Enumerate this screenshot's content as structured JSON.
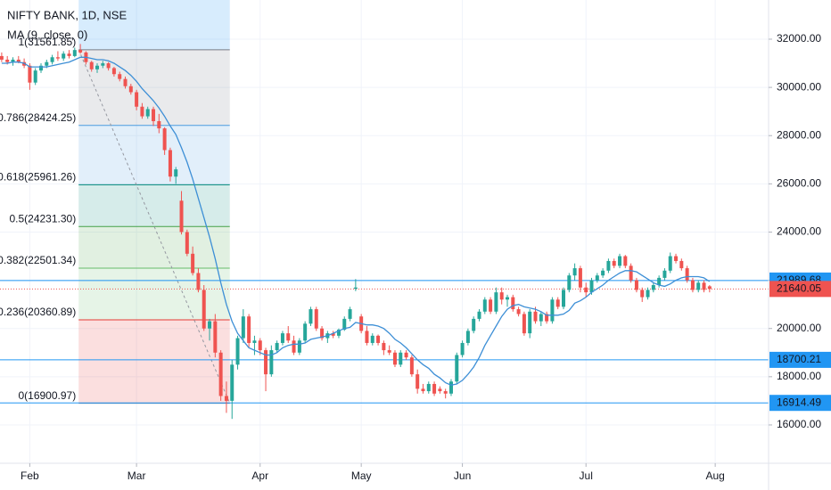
{
  "chart_data": {
    "type": "candlestick",
    "title": "NIFTY BANK, 1D, NSE",
    "up_color": "#26a69a",
    "down_color": "#ef5350",
    "xlim": [
      -0.3,
      136.5
    ],
    "ylim": [
      14410,
      33625
    ],
    "xticks": [
      {
        "value": 5,
        "label": "Feb"
      },
      {
        "value": 24,
        "label": "Mar"
      },
      {
        "value": 46,
        "label": "Apr"
      },
      {
        "value": 64,
        "label": "May"
      },
      {
        "value": 82,
        "label": "Jun"
      },
      {
        "value": 104,
        "label": "Jul"
      },
      {
        "value": 127,
        "label": "Aug"
      }
    ],
    "yticks": [
      {
        "value": 16000,
        "label": "16000.00"
      },
      {
        "value": 18000,
        "label": "18000.00"
      },
      {
        "value": 20000,
        "label": "20000.00"
      },
      {
        "value": 22000,
        "label": "22000.00"
      },
      {
        "value": 24000,
        "label": "24000.00"
      },
      {
        "value": 26000,
        "label": "26000.00"
      },
      {
        "value": 28000,
        "label": "28000.00"
      },
      {
        "value": 30000,
        "label": "30000.00"
      },
      {
        "value": 32000,
        "label": "32000.00"
      }
    ],
    "grid": true,
    "open": [
      31300,
      31150,
      31050,
      31150,
      31050,
      30900,
      30200,
      30700,
      30900,
      31050,
      31250,
      31200,
      31400,
      31300,
      31550,
      31450,
      31050,
      30750,
      30900,
      31000,
      30800,
      30550,
      30350,
      30050,
      29800,
      29200,
      28800,
      29100,
      28600,
      28300,
      27400,
      26300,
      25300,
      24000,
      23100,
      22300,
      21600,
      20000,
      20300,
      19000,
      17200,
      17000,
      18500,
      19600,
      20500,
      19400,
      19500,
      19100,
      18100,
      19100,
      19400,
      19800,
      19500,
      19000,
      19500,
      20200,
      20800,
      20000,
      19600,
      19800,
      19700,
      19950,
      20400,
      21650,
      20500,
      19900,
      19400,
      19700,
      19400,
      19100,
      19000,
      18500,
      19000,
      18800,
      18100,
      17500,
      17400,
      17700,
      17500,
      17400,
      17300,
      17800,
      18900,
      19400,
      19900,
      20400,
      20700,
      21200,
      20700,
      21500,
      21200,
      21300,
      20800,
      20600,
      19800,
      20700,
      20300,
      20600,
      20300,
      21200,
      20900,
      21600,
      22200,
      22500,
      21700,
      21500,
      22000,
      22200,
      22400,
      22800,
      22600,
      23000,
      22600,
      22000,
      21600,
      21300,
      21600,
      21800,
      22100,
      22400,
      23000,
      22800,
      22500,
      22000,
      21600,
      21900,
      21750
    ],
    "high": [
      31450,
      31300,
      31250,
      31300,
      31200,
      31000,
      30800,
      31000,
      31150,
      31350,
      31500,
      31500,
      31550,
      31650,
      31800,
      31500,
      31100,
      31000,
      31100,
      31050,
      30850,
      30650,
      30450,
      30150,
      29900,
      29350,
      29200,
      29200,
      28900,
      28350,
      27500,
      26700,
      25700,
      24100,
      23400,
      22500,
      21800,
      20400,
      20600,
      19100,
      17800,
      18700,
      19700,
      20800,
      20600,
      19700,
      19600,
      19200,
      19300,
      19500,
      19900,
      20100,
      19700,
      19600,
      20300,
      20900,
      20900,
      20100,
      19900,
      19900,
      20000,
      20500,
      20900,
      22050,
      20600,
      20100,
      19800,
      19750,
      19500,
      19300,
      19100,
      19100,
      19100,
      18900,
      18300,
      17700,
      17800,
      17800,
      17600,
      17500,
      17900,
      19000,
      19500,
      20000,
      20500,
      20800,
      21300,
      21300,
      21700,
      21700,
      21400,
      21400,
      20900,
      20700,
      20800,
      20900,
      20700,
      20700,
      21300,
      21300,
      21700,
      22300,
      22700,
      22600,
      21900,
      22100,
      22300,
      22500,
      22900,
      22900,
      23100,
      23050,
      22700,
      22100,
      21700,
      21700,
      21900,
      22200,
      22500,
      23150,
      23100,
      22900,
      22600,
      22100,
      22000,
      22000,
      21800
    ],
    "low": [
      31050,
      30950,
      30900,
      31000,
      30800,
      29900,
      30100,
      30600,
      30800,
      30950,
      31100,
      31100,
      31200,
      31250,
      31400,
      30950,
      30650,
      30600,
      30800,
      30700,
      30450,
      30250,
      29950,
      29700,
      29050,
      28700,
      28700,
      28400,
      28100,
      27200,
      26100,
      26000,
      23900,
      23000,
      22200,
      21500,
      19900,
      19500,
      18800,
      17000,
      16500,
      16250,
      18300,
      19400,
      19200,
      18900,
      18900,
      17400,
      18000,
      19000,
      19300,
      19400,
      18900,
      18900,
      19400,
      20100,
      19900,
      19500,
      19400,
      19600,
      19600,
      19900,
      20300,
      21550,
      19800,
      19300,
      19300,
      19300,
      18900,
      18900,
      18400,
      18400,
      18700,
      18000,
      17300,
      17300,
      17300,
      17200,
      17300,
      17100,
      17200,
      17700,
      18800,
      19300,
      19800,
      20300,
      20600,
      20600,
      20600,
      21000,
      20900,
      20700,
      20500,
      19700,
      19600,
      20200,
      20100,
      20200,
      20200,
      20800,
      20800,
      21500,
      22000,
      21500,
      21300,
      21400,
      21900,
      22100,
      22300,
      22500,
      22500,
      22500,
      21900,
      21500,
      21100,
      21200,
      21500,
      21700,
      22000,
      22300,
      22700,
      22400,
      21900,
      21500,
      21500,
      21500,
      21500
    ],
    "close": [
      31150,
      31050,
      31150,
      31050,
      30900,
      30200,
      30700,
      30900,
      31050,
      31250,
      31200,
      31400,
      31300,
      31550,
      31450,
      31050,
      30750,
      30900,
      31000,
      30800,
      30550,
      30350,
      30050,
      29800,
      29200,
      28800,
      29100,
      28600,
      28300,
      27400,
      26300,
      26600,
      24000,
      23100,
      22300,
      21600,
      20000,
      20300,
      19000,
      17200,
      17000,
      18500,
      19600,
      20500,
      19400,
      19500,
      19100,
      18100,
      19100,
      19400,
      19800,
      19500,
      19000,
      19500,
      20200,
      20800,
      20000,
      19600,
      19800,
      19700,
      19950,
      20400,
      20800,
      21700,
      19900,
      19400,
      19700,
      19400,
      19100,
      19000,
      18500,
      19000,
      18800,
      18100,
      17500,
      17400,
      17700,
      17300,
      17400,
      17300,
      17800,
      18900,
      19400,
      19900,
      20400,
      20700,
      21200,
      20700,
      21500,
      21200,
      21300,
      20800,
      20600,
      19800,
      20700,
      20300,
      20600,
      20300,
      21200,
      20900,
      21600,
      22200,
      22500,
      21700,
      21500,
      22000,
      22200,
      22400,
      22800,
      22600,
      23000,
      22600,
      22000,
      21600,
      21300,
      21600,
      21800,
      22100,
      22400,
      23000,
      22800,
      22500,
      22000,
      21600,
      21900,
      21600,
      21640.05
    ],
    "series": [
      {
        "name": "MA (9, close, 0)",
        "color": "#3d8fd6",
        "values": [
          31000,
          31000,
          31050,
          31050,
          31000,
          30850,
          30850,
          30850,
          30850,
          30900,
          30950,
          31000,
          31050,
          31150,
          31250,
          31250,
          31200,
          31150,
          31150,
          31100,
          31000,
          30850,
          30700,
          30500,
          30250,
          29950,
          29700,
          29450,
          29150,
          28800,
          28400,
          28050,
          27500,
          26900,
          26200,
          25400,
          24600,
          23800,
          22900,
          21900,
          21000,
          20300,
          19800,
          19500,
          19200,
          19100,
          19000,
          18900,
          18900,
          19000,
          19200,
          19300,
          19350,
          19350,
          19400,
          19550,
          19600,
          19650,
          19700,
          19800,
          19900,
          20000,
          20050,
          20250,
          20200,
          20150,
          20150,
          20100,
          20000,
          19800,
          19550,
          19400,
          19200,
          18950,
          18700,
          18500,
          18350,
          18100,
          17950,
          17750,
          17650,
          17700,
          17850,
          18100,
          18400,
          18800,
          19300,
          19700,
          20100,
          20500,
          20800,
          20950,
          21000,
          20900,
          20850,
          20800,
          20700,
          20550,
          20550,
          20550,
          20600,
          20750,
          21050,
          21150,
          21300,
          21500,
          21650,
          21800,
          22000,
          22150,
          22300,
          22400,
          22400,
          22350,
          22200,
          22050,
          21900,
          21800,
          21750,
          21850,
          22000,
          22100,
          22150,
          22150,
          22150,
          22100,
          21950
        ]
      }
    ],
    "fibonacci": [
      {
        "value": 31561.85,
        "label": "1(31561.85)",
        "color": "#787b86"
      },
      {
        "value": 28424.25,
        "label": "0.786(28424.25)",
        "color": "#4a9be0"
      },
      {
        "value": 25961.26,
        "label": "0.618(25961.26)",
        "color": "#00897b"
      },
      {
        "value": 24231.3,
        "label": "0.5(24231.30)",
        "color": "#43a047"
      },
      {
        "value": 22501.34,
        "label": "0.382(22501.34)",
        "color": "#66bb6a"
      },
      {
        "value": 20360.89,
        "label": "0.236(20360.89)",
        "color": "#e53935"
      },
      {
        "value": 16900.97,
        "label": "0(16900.97)",
        "color": "#787b86"
      }
    ],
    "hlines": [
      {
        "value": 21989.68,
        "color": "#2196f3",
        "style": "solid"
      },
      {
        "value": 18700.21,
        "color": "#2196f3",
        "style": "solid"
      },
      {
        "value": 16914.49,
        "color": "#2196f3",
        "style": "solid"
      },
      {
        "value": 21640.05,
        "color": "#ef5350",
        "style": "dotted"
      }
    ]
  }
}
